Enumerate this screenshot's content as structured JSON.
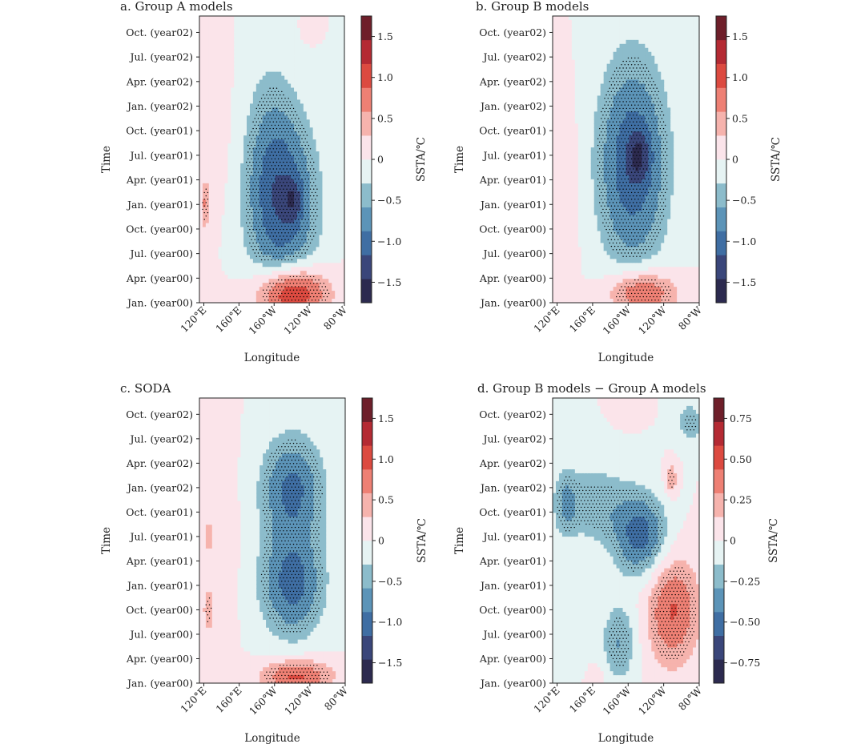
{
  "colors": {
    "levels": [
      "#2c2a4f",
      "#3a467a",
      "#3f6ea3",
      "#5c94b8",
      "#8cbccb",
      "#e6f3f3",
      "#fbe4ea",
      "#f6b3ad",
      "#ee8074",
      "#dc4a40",
      "#b42a33",
      "#6e1f2a"
    ],
    "stipple": "#000000",
    "axis": "#222222"
  },
  "panels": [
    {
      "id": "a",
      "title": "a. Group A models",
      "xlabel": "Longitude",
      "ylabel": "Time",
      "xticks": [
        "120°E",
        "160°E",
        "160°W",
        "120°W",
        "80°W"
      ],
      "xtick_lon": [
        120,
        160,
        200,
        240,
        280
      ],
      "xlim": [
        115,
        280
      ],
      "yticks": [
        "Jan. (year00)",
        "Apr. (year00)",
        "Jul. (year00)",
        "Oct. (year00)",
        "Jan. (year01)",
        "Apr. (year01)",
        "Jul. (year01)",
        "Oct. (year01)",
        "Jan. (year02)",
        "Apr. (year02)",
        "Jul. (year02)",
        "Oct. (year02)"
      ],
      "ylim": [
        0,
        35
      ],
      "cbar_label": "SSTA/℃",
      "cbar_ticks": [
        "-1.5",
        "-1.0",
        "-0.5",
        "0",
        "0.5",
        "1.0",
        "1.5"
      ],
      "cbar_tick_vals": [
        -1.5,
        -1.0,
        -0.5,
        0,
        0.5,
        1.0,
        1.5
      ],
      "cbar_range": [
        -1.75,
        1.75
      ],
      "chart_data": {
        "type": "heatmap",
        "x": "longitude",
        "y": "month",
        "blobs": [
          {
            "lon": 220,
            "mon": 1.2,
            "rlon": 40,
            "rmon": 3.2,
            "amp": 1.45
          },
          {
            "lon": 210,
            "mon": 12,
            "rlon": 40,
            "rmon": 11,
            "amp": -1.05
          },
          {
            "lon": 222,
            "mon": 12.5,
            "rlon": 11,
            "rmon": 2.5,
            "amp": -0.45
          },
          {
            "lon": 195,
            "mon": 20,
            "rlon": 30,
            "rmon": 12,
            "amp": -0.3
          },
          {
            "lon": 122,
            "mon": 12,
            "rlon": 5,
            "rmon": 3,
            "amp": 0.65
          },
          {
            "lon": 140,
            "mon": 20,
            "rlon": 18,
            "rmon": 12,
            "amp": 0.12
          },
          {
            "lon": 240,
            "mon": 33.5,
            "rlon": 12,
            "rmon": 2,
            "amp": 0.12
          }
        ]
      }
    },
    {
      "id": "b",
      "title": "b. Group B models",
      "xlabel": "Longitude",
      "ylabel": "Time",
      "xticks": [
        "120°E",
        "160°E",
        "160°W",
        "120°W",
        "80°W"
      ],
      "xtick_lon": [
        120,
        160,
        200,
        240,
        280
      ],
      "xlim": [
        115,
        280
      ],
      "yticks": [
        "Jan. (year00)",
        "Apr. (year00)",
        "Jul. (year00)",
        "Oct. (year00)",
        "Jan. (year01)",
        "Apr. (year01)",
        "Jul. (year01)",
        "Oct. (year01)",
        "Jan. (year02)",
        "Apr. (year02)",
        "Jul. (year02)",
        "Oct. (year02)"
      ],
      "ylim": [
        0,
        35
      ],
      "cbar_label": "SSTA/℃",
      "cbar_ticks": [
        "-1.5",
        "-1.0",
        "-0.5",
        "0",
        "0.5",
        "1.0",
        "1.5"
      ],
      "cbar_tick_vals": [
        -1.5,
        -1.0,
        -0.5,
        0,
        0.5,
        1.0,
        1.5
      ],
      "cbar_range": [
        -1.75,
        1.75
      ],
      "chart_data": {
        "type": "heatmap",
        "x": "longitude",
        "y": "month",
        "blobs": [
          {
            "lon": 215,
            "mon": 1.2,
            "rlon": 38,
            "rmon": 2.8,
            "amp": 1.05
          },
          {
            "lon": 205,
            "mon": 17,
            "rlon": 40,
            "rmon": 13,
            "amp": -1.1
          },
          {
            "lon": 212,
            "mon": 18,
            "rlon": 12,
            "rmon": 3,
            "amp": -0.55
          },
          {
            "lon": 135,
            "mon": 14,
            "rlon": 15,
            "rmon": 12,
            "amp": 0.15
          },
          {
            "lon": 260,
            "mon": 30,
            "rlon": 10,
            "rmon": 3,
            "amp": -0.2
          }
        ]
      }
    },
    {
      "id": "c",
      "title": "c. SODA",
      "xlabel": "Longitude",
      "ylabel": "Time",
      "xticks": [
        "120°E",
        "160°E",
        "160°W",
        "120°W",
        "80°W"
      ],
      "xtick_lon": [
        120,
        160,
        200,
        240,
        280
      ],
      "xlim": [
        115,
        280
      ],
      "yticks": [
        "Jan. (year00)",
        "Apr. (year00)",
        "Jul. (year00)",
        "Oct. (year00)",
        "Jan. (year01)",
        "Apr. (year01)",
        "Jul. (year01)",
        "Oct. (year01)",
        "Jan. (year02)",
        "Apr. (year02)",
        "Jul. (year02)",
        "Oct. (year02)"
      ],
      "ylim": [
        0,
        35
      ],
      "cbar_label": "SSTA/℃",
      "cbar_ticks": [
        "-1.5",
        "-1.0",
        "-0.5",
        "0",
        "0.5",
        "1.0",
        "1.5"
      ],
      "cbar_tick_vals": [
        -1.5,
        -1.0,
        -0.5,
        0,
        0.5,
        1.0,
        1.5
      ],
      "cbar_range": [
        -1.75,
        1.75
      ],
      "chart_data": {
        "type": "heatmap",
        "x": "longitude",
        "y": "month",
        "blobs": [
          {
            "lon": 225,
            "mon": 0.8,
            "rlon": 40,
            "rmon": 2.2,
            "amp": 1.0
          },
          {
            "lon": 220,
            "mon": 12,
            "rlon": 35,
            "rmon": 6,
            "amp": -0.8
          },
          {
            "lon": 220,
            "mon": 24,
            "rlon": 35,
            "rmon": 6,
            "amp": -0.75
          },
          {
            "lon": 220,
            "mon": 18,
            "rlon": 40,
            "rmon": 14,
            "amp": -0.25
          },
          {
            "lon": 125,
            "mon": 9,
            "rlon": 6,
            "rmon": 3,
            "amp": 0.5
          },
          {
            "lon": 125,
            "mon": 18,
            "rlon": 6,
            "rmon": 3,
            "amp": 0.35
          },
          {
            "lon": 145,
            "mon": 18,
            "rlon": 20,
            "rmon": 14,
            "amp": 0.12
          }
        ]
      }
    },
    {
      "id": "d",
      "title": "d. Group B models − Group A models",
      "xlabel": "Longitude",
      "ylabel": "Time",
      "xticks": [
        "120°E",
        "160°E",
        "160°W",
        "120°W",
        "80°W"
      ],
      "xtick_lon": [
        120,
        160,
        200,
        240,
        280
      ],
      "xlim": [
        115,
        280
      ],
      "yticks": [
        "Jan. (year00)",
        "Apr. (year00)",
        "Jul. (year00)",
        "Oct. (year00)",
        "Jan. (year01)",
        "Apr. (year01)",
        "Jul. (year01)",
        "Oct. (year01)",
        "Jan. (year02)",
        "Apr. (year02)",
        "Jul. (year02)",
        "Oct. (year02)"
      ],
      "ylim": [
        0,
        35
      ],
      "cbar_label": "SSTA/℃",
      "cbar_ticks": [
        "-0.75",
        "-0.50",
        "-0.25",
        "0",
        "0.25",
        "0.50",
        "0.75"
      ],
      "cbar_tick_vals": [
        -0.75,
        -0.5,
        -0.25,
        0,
        0.25,
        0.5,
        0.75
      ],
      "cbar_range": [
        -0.875,
        0.875
      ],
      "chart_data": {
        "type": "heatmap",
        "x": "longitude",
        "y": "month",
        "blobs": [
          {
            "lon": 215,
            "mon": 18,
            "rlon": 30,
            "rmon": 5,
            "amp": -0.5
          },
          {
            "lon": 160,
            "mon": 22,
            "rlon": 45,
            "rmon": 5,
            "amp": -0.25
          },
          {
            "lon": 130,
            "mon": 22,
            "rlon": 12,
            "rmon": 4,
            "amp": -0.2
          },
          {
            "lon": 190,
            "mon": 5,
            "rlon": 20,
            "rmon": 5,
            "amp": -0.3
          },
          {
            "lon": 140,
            "mon": 3,
            "rlon": 18,
            "rmon": 4,
            "amp": -0.15
          },
          {
            "lon": 250,
            "mon": 9,
            "rlon": 30,
            "rmon": 7,
            "amp": 0.45
          },
          {
            "lon": 270,
            "mon": 32,
            "rlon": 15,
            "rmon": 2.5,
            "amp": -0.25
          },
          {
            "lon": 248,
            "mon": 25,
            "rlon": 7,
            "rmon": 2,
            "amp": 0.3
          },
          {
            "lon": 160,
            "mon": 0,
            "rlon": 15,
            "rmon": 3,
            "amp": 0.15
          },
          {
            "lon": 200,
            "mon": 34,
            "rlon": 15,
            "rmon": 2,
            "amp": 0.1
          }
        ]
      }
    }
  ]
}
